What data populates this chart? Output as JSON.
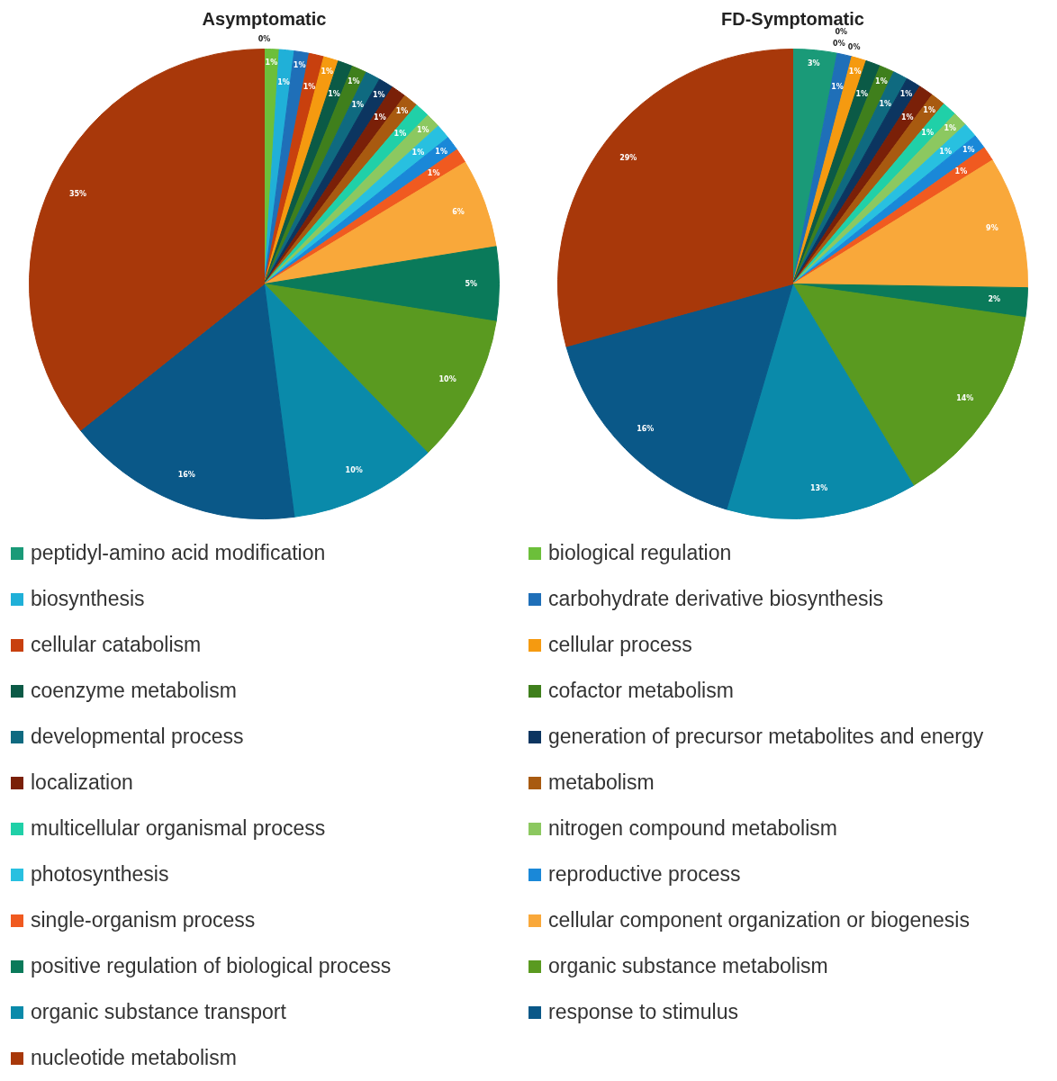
{
  "chart_data": [
    {
      "type": "pie",
      "title": "Asymptomatic",
      "categories": [
        "peptidyl-amino acid modification",
        "biological regulation",
        "biosynthesis",
        "carbohydrate derivative biosynthesis",
        "cellular catabolism",
        "cellular process",
        "coenzyme metabolism",
        "cofactor metabolism",
        "developmental process",
        "generation of precursor metabolites and energy",
        "localization",
        "metabolism",
        "multicellular organismal process",
        "nitrogen compound metabolism",
        "photosynthesis",
        "reproductive process",
        "single-organism process",
        "cellular component organization or biogenesis",
        "positive regulation of biological process",
        "organic substance metabolism",
        "organic substance transport",
        "response to stimulus",
        "nucleotide metabolism"
      ],
      "values": [
        0,
        1,
        1,
        1,
        1,
        1,
        1,
        1,
        1,
        1,
        1,
        1,
        1,
        1,
        1,
        1,
        1,
        6,
        5,
        10,
        10,
        16,
        35
      ],
      "value_labels": [
        "0%",
        "1%",
        "1%",
        "1%",
        "1%",
        "1%",
        "1%",
        "1%",
        "1%",
        "1%",
        "1%",
        "1%",
        "1%",
        "1%",
        "1%",
        "1%",
        "1%",
        "6%",
        "5%",
        "10%",
        "10%",
        "16%",
        "35%"
      ],
      "colors": [
        "#1a9a78",
        "#6cbf3a",
        "#20b0d8",
        "#1f6fb8",
        "#c8400e",
        "#f59a10",
        "#0b5a46",
        "#3f7f1c",
        "#0f6a80",
        "#0c3560",
        "#7a2008",
        "#a85a10",
        "#20d0a8",
        "#8cc860",
        "#28c0e0",
        "#1a88d8",
        "#f05a20",
        "#f9a83a",
        "#0a7a5a",
        "#5a9a20",
        "#0a8aaa",
        "#0a5888",
        "#a8380a"
      ],
      "legend": "bottom"
    },
    {
      "type": "pie",
      "title": "FD-Symptomatic",
      "categories": [
        null,
        null,
        null,
        null,
        null,
        null,
        null,
        null,
        null,
        null,
        null,
        null,
        null,
        null,
        null,
        null,
        null,
        null,
        null,
        null,
        null,
        null,
        null
      ],
      "values": [
        3,
        0,
        0,
        1,
        0,
        1,
        1,
        1,
        1,
        1,
        1,
        1,
        1,
        1,
        1,
        1,
        1,
        9,
        2,
        14,
        13,
        16,
        29
      ],
      "value_labels": [
        "3%",
        "0%",
        "0%",
        "1%",
        "0%",
        "1%",
        "1%",
        "1%",
        "1%",
        "1%",
        "1%",
        "1%",
        "1%",
        "1%",
        "1%",
        "1%",
        "1%",
        "9%",
        "2%",
        "14%",
        "13%",
        "16%",
        "29%"
      ],
      "colors": [
        "#1a9a78",
        "#6cbf3a",
        "#20b0d8",
        "#1f6fb8",
        "#c8400e",
        "#f59a10",
        "#0b5a46",
        "#3f7f1c",
        "#0f6a80",
        "#0c3560",
        "#7a2008",
        "#a85a10",
        "#20d0a8",
        "#8cc860",
        "#28c0e0",
        "#1a88d8",
        "#f05a20",
        "#f9a83a",
        "#0a7a5a",
        "#5a9a20",
        "#0a8aaa",
        "#0a5888",
        "#a8380a"
      ]
    }
  ]
}
